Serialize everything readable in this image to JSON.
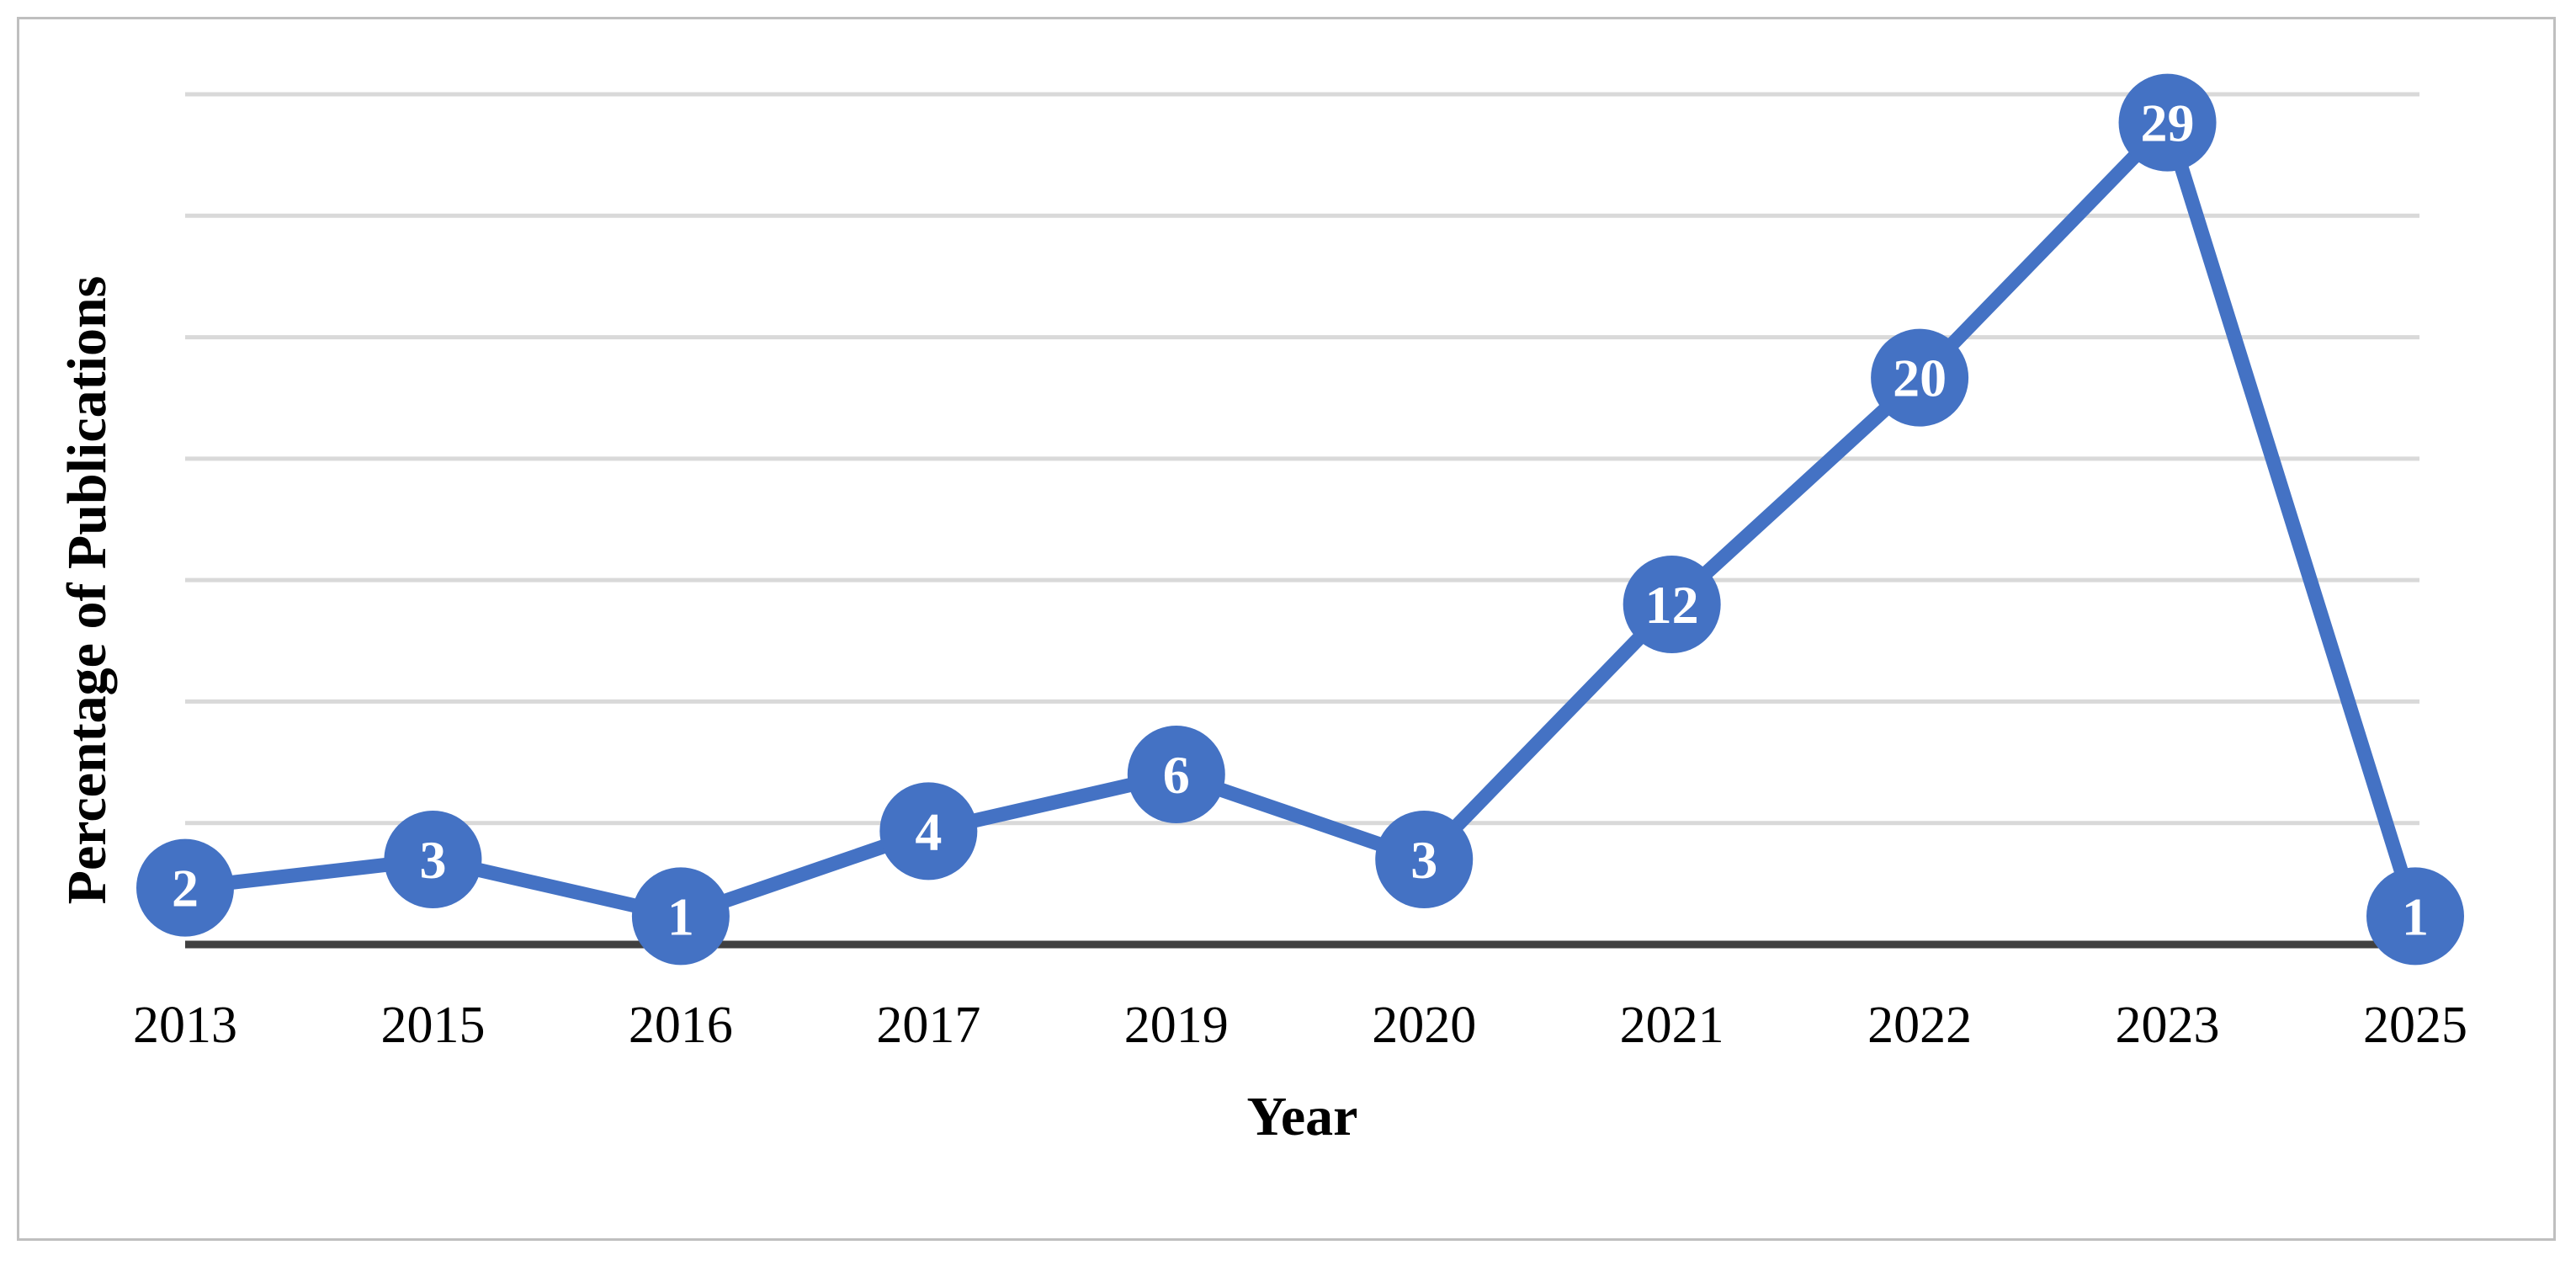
{
  "chart_data": {
    "type": "line",
    "xlabel": "Year",
    "ylabel": "Percentage of Publications",
    "categories": [
      "2013",
      "2015",
      "2016",
      "2017",
      "2019",
      "2020",
      "2021",
      "2022",
      "2023",
      "2025"
    ],
    "series": [
      {
        "values": [
          2,
          3,
          1,
          4,
          6,
          3,
          12,
          20,
          29,
          1
        ]
      }
    ],
    "ylim": [
      0,
      30
    ],
    "grid": true,
    "legend": "none",
    "colors": {
      "series": "#4472c4",
      "grid": "#d9d9d9",
      "axis": "#404040",
      "label": "#ffffff"
    }
  }
}
